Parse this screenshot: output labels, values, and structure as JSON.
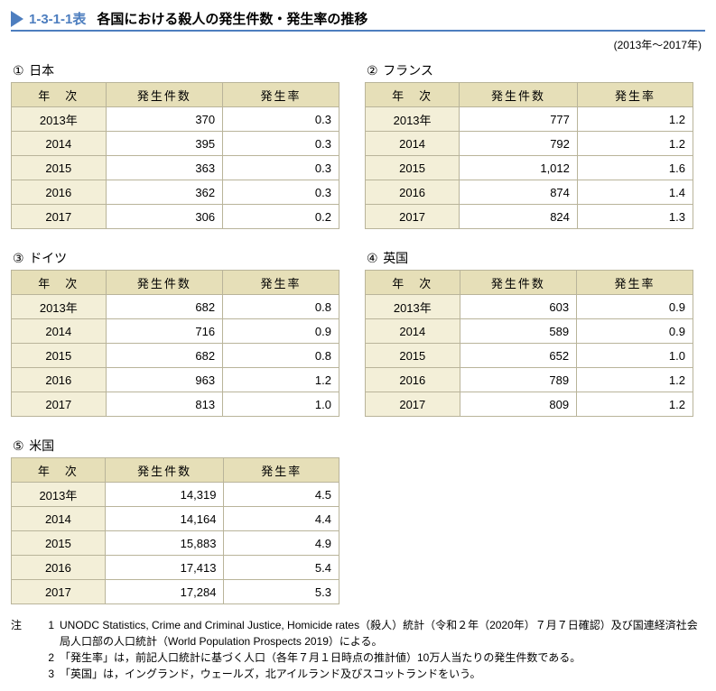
{
  "title": {
    "code": "1-3-1-1表",
    "text": "各国における殺人の発生件数・発生率の推移"
  },
  "period": "(2013年～2017年)",
  "headers": {
    "year": "年　次",
    "count": "発生件数",
    "rate": "発生率"
  },
  "tables": [
    {
      "marker": "①",
      "name": "日本",
      "rows": [
        {
          "y": "2013年",
          "c": "370",
          "r": "0.3"
        },
        {
          "y": "2014",
          "c": "395",
          "r": "0.3"
        },
        {
          "y": "2015",
          "c": "363",
          "r": "0.3"
        },
        {
          "y": "2016",
          "c": "362",
          "r": "0.3"
        },
        {
          "y": "2017",
          "c": "306",
          "r": "0.2"
        }
      ]
    },
    {
      "marker": "②",
      "name": "フランス",
      "rows": [
        {
          "y": "2013年",
          "c": "777",
          "r": "1.2"
        },
        {
          "y": "2014",
          "c": "792",
          "r": "1.2"
        },
        {
          "y": "2015",
          "c": "1,012",
          "r": "1.6"
        },
        {
          "y": "2016",
          "c": "874",
          "r": "1.4"
        },
        {
          "y": "2017",
          "c": "824",
          "r": "1.3"
        }
      ]
    },
    {
      "marker": "③",
      "name": "ドイツ",
      "rows": [
        {
          "y": "2013年",
          "c": "682",
          "r": "0.8"
        },
        {
          "y": "2014",
          "c": "716",
          "r": "0.9"
        },
        {
          "y": "2015",
          "c": "682",
          "r": "0.8"
        },
        {
          "y": "2016",
          "c": "963",
          "r": "1.2"
        },
        {
          "y": "2017",
          "c": "813",
          "r": "1.0"
        }
      ]
    },
    {
      "marker": "④",
      "name": "英国",
      "rows": [
        {
          "y": "2013年",
          "c": "603",
          "r": "0.9"
        },
        {
          "y": "2014",
          "c": "589",
          "r": "0.9"
        },
        {
          "y": "2015",
          "c": "652",
          "r": "1.0"
        },
        {
          "y": "2016",
          "c": "789",
          "r": "1.2"
        },
        {
          "y": "2017",
          "c": "809",
          "r": "1.2"
        }
      ]
    },
    {
      "marker": "⑤",
      "name": "米国",
      "rows": [
        {
          "y": "2013年",
          "c": "14,319",
          "r": "4.5"
        },
        {
          "y": "2014",
          "c": "14,164",
          "r": "4.4"
        },
        {
          "y": "2015",
          "c": "15,883",
          "r": "4.9"
        },
        {
          "y": "2016",
          "c": "17,413",
          "r": "5.4"
        },
        {
          "y": "2017",
          "c": "17,284",
          "r": "5.3"
        }
      ]
    }
  ],
  "notes": {
    "label": "注",
    "items": [
      {
        "n": "1",
        "t": "UNODC Statistics, Crime and Criminal Justice, Homicide rates（殺人）統計（令和２年（2020年）７月７日確認）及び国連経済社会局人口部の人口統計（World Population Prospects 2019）による。"
      },
      {
        "n": "2",
        "t": "「発生率」は，前記人口統計に基づく人口（各年７月１日時点の推計値）10万人当たりの発生件数である。"
      },
      {
        "n": "3",
        "t": "「英国」は，イングランド，ウェールズ，北アイルランド及びスコットランドをいう。"
      }
    ]
  }
}
